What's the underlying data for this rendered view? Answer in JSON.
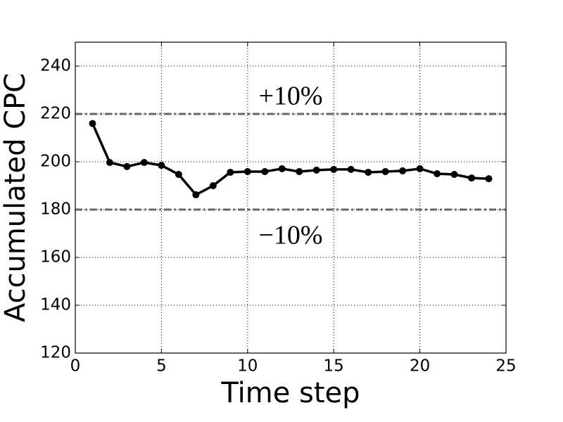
{
  "chart_data": {
    "type": "line",
    "x_label": "Time step",
    "y_label": "Accumulated CPC",
    "x": [
      1,
      2,
      3,
      4,
      5,
      6,
      7,
      8,
      9,
      10,
      11,
      12,
      13,
      14,
      15,
      16,
      17,
      18,
      19,
      20,
      21,
      22,
      23,
      24
    ],
    "series": [
      {
        "color": "#000000",
        "values": [
          216,
          199.7,
          198,
          199.7,
          198.5,
          194.7,
          186.2,
          190,
          195.6,
          195.9,
          195.9,
          197.1,
          195.9,
          196.5,
          196.8,
          196.8,
          195.6,
          195.9,
          196.2,
          197.1,
          195,
          194.7,
          193.2,
          192.9
        ]
      }
    ],
    "reference_lines": [
      {
        "value": 220,
        "label": "+10%",
        "color": "#666666"
      },
      {
        "value": 180,
        "label": "−10%",
        "color": "#666666"
      }
    ],
    "xlim": [
      0,
      25
    ],
    "xticks": [
      0,
      5,
      10,
      15,
      20,
      25
    ],
    "ylim": [
      120,
      250
    ],
    "yticks": [
      120,
      140,
      160,
      180,
      200,
      220,
      240
    ],
    "grid": true
  }
}
